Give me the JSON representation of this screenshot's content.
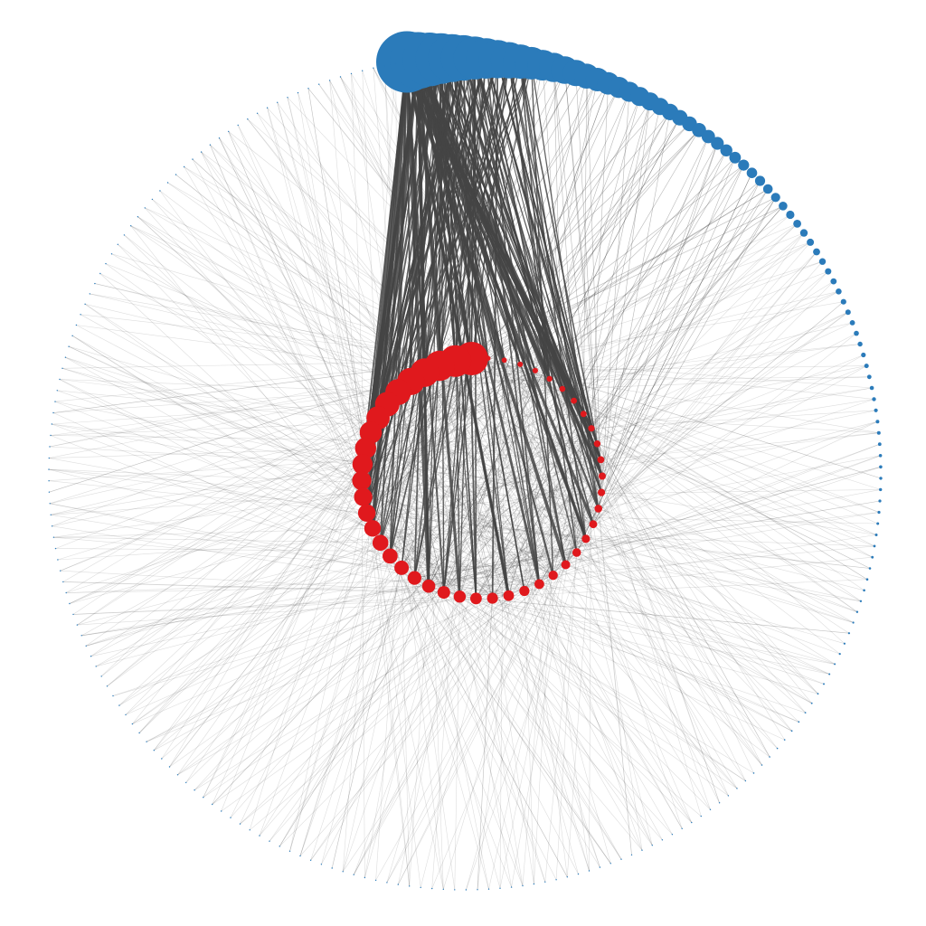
{
  "diagram": {
    "type": "bipartite-network",
    "layout": "nested-circles",
    "colors": {
      "outer_nodes": "#2b7bba",
      "inner_nodes": "#e0191d",
      "edges": "#444444"
    },
    "outer_ring": {
      "node_count": 230
    },
    "inner_ring": {
      "node_count": 46
    }
  }
}
